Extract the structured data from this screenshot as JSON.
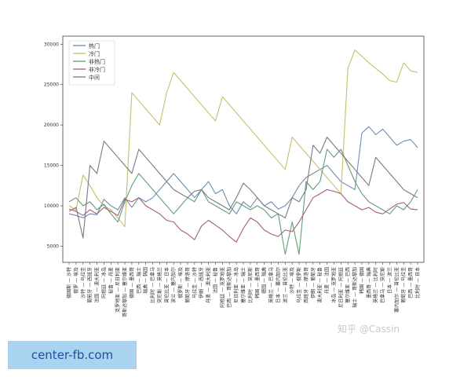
{
  "chart_data": {
    "type": "line",
    "title": "",
    "xlabel": "",
    "ylabel": "",
    "ylim": [
      3000,
      31000
    ],
    "yticks": [
      5000,
      10000,
      15000,
      20000,
      25000,
      30000
    ],
    "legend": "top-left",
    "grid": false,
    "categories": [
      "德国斯 — 沙特",
      "俄罗 — 埃及",
      "沙特 — 乌拉圭",
      "葡萄牙 — 西班牙",
      "法国 — 澳大利亚",
      "阿根廷 — 冰岛",
      "秘鲁 — 丹麦",
      "克罗地亚 — 尼日利亚",
      "哥斯达黎加 — 塞尔维亚",
      "德国 — 墨西哥",
      "巴西 — 瑞士",
      "瑞典 — 韩国",
      "比利时 — 巴拿马",
      "突尼斯 — 英格兰",
      "哥伦比亚 — 日本",
      "波兰 — 塞内加尔",
      "俄罗斯 — 埃及",
      "葡萄牙 — 摩洛哥",
      "乌拉圭 — 沙特",
      "伊朗 — 西班牙",
      "丹麦 — 澳大利亚",
      "法国 — 秘鲁",
      "阿根廷 — 克罗地亚",
      "巴西 — 哥斯达黎加",
      "尼日利亚 — 冰岛",
      "塞尔维亚 — 瑞士",
      "比利时 — 突尼斯",
      "韩国 — 墨西哥",
      "德国 — 瑞典",
      "英格兰 — 巴拿马",
      "日本 — 塞内加尔",
      "波兰 — 哥伦比亚",
      "沙特 — 埃及",
      "乌拉圭 — 俄罗斯",
      "西班牙 — 摩洛哥",
      "伊朗 — 葡萄牙",
      "澳大利亚 — 秘鲁",
      "丹麦 — 法国",
      "冰岛 — 克罗地亚",
      "尼日利亚 — 阿根廷",
      "塞尔维亚 — 巴西",
      "瑞士 — 哥斯达黎加",
      "韩国 — 德国",
      "墨西哥 — 瑞典",
      "英格兰 — 比利时",
      "巴拿马 — 突尼斯",
      "日本 — 波兰",
      "塞内加尔 — 哥伦比亚",
      "葡萄牙 — 乌拉圭",
      "巴西 — 墨西哥",
      "比利时 — 日本"
    ],
    "series": [
      {
        "name": "热门",
        "color": "#6b8db5",
        "values": [
          9000,
          8800,
          8500,
          9000,
          8900,
          10800,
          10000,
          9500,
          11000,
          9800,
          11000,
          10500,
          11000,
          12000,
          13000,
          14000,
          13000,
          12000,
          11000,
          12000,
          13000,
          11500,
          12000,
          10000,
          9000,
          10500,
          9800,
          11000,
          10000,
          10500,
          9600,
          10000,
          11000,
          12500,
          13500,
          14000,
          14500,
          15000,
          14000,
          13000,
          12500,
          12000,
          19000,
          19800,
          18800,
          19500,
          18500,
          17500,
          18000,
          18200,
          17200
        ]
      },
      {
        "name": "冷门",
        "color": "#c5c06c",
        "values": [
          10000,
          9500,
          13800,
          12500,
          11000,
          10000,
          9500,
          8500,
          7400,
          24000,
          23000,
          22000,
          21000,
          20000,
          24000,
          26500,
          25500,
          24500,
          23500,
          22500,
          21500,
          20500,
          23500,
          22500,
          21500,
          20500,
          19500,
          18500,
          17500,
          16500,
          15500,
          14500,
          18500,
          17500,
          16500,
          15500,
          14500,
          13500,
          12500,
          11500,
          27000,
          29300,
          28500,
          27700,
          27000,
          26300,
          25500,
          25300,
          27700,
          26700,
          26500
        ]
      },
      {
        "name": "非热门",
        "color": "#5f9e77",
        "values": [
          10500,
          11000,
          10000,
          10500,
          9500,
          10200,
          9000,
          8000,
          10500,
          12500,
          14000,
          13000,
          12000,
          11000,
          10000,
          9000,
          10000,
          11000,
          10500,
          12000,
          10500,
          10000,
          9500,
          9000,
          10500,
          10000,
          9500,
          10000,
          9500,
          8500,
          9000,
          4000,
          8000,
          4000,
          13000,
          12000,
          13000,
          17000,
          16000,
          17000,
          15000,
          13000,
          11500,
          10500,
          10000,
          9500,
          9000,
          10000,
          9500,
          10500,
          12000
        ]
      },
      {
        "name": "非冷门",
        "color": "#a55d7a",
        "values": [
          9600,
          9300,
          8800,
          9500,
          9000,
          9800,
          9300,
          8800,
          10800,
          10500,
          11000,
          10000,
          9500,
          9000,
          8200,
          8000,
          7000,
          6500,
          5800,
          7500,
          8200,
          7600,
          7000,
          6200,
          5500,
          7200,
          8500,
          8000,
          7000,
          6500,
          6200,
          7000,
          6800,
          8000,
          9500,
          11000,
          11500,
          12000,
          11800,
          11500,
          10500,
          10000,
          9500,
          9800,
          9200,
          9000,
          9600,
          10200,
          10400,
          9600,
          9500
        ]
      },
      {
        "name": "中间",
        "color": "#7a7a7a",
        "values": [
          9300,
          9800,
          6000,
          15000,
          14000,
          18000,
          17000,
          16000,
          15000,
          14000,
          17000,
          16000,
          15000,
          14000,
          13000,
          12000,
          11500,
          11000,
          11800,
          12000,
          11000,
          10500,
          10000,
          9500,
          11000,
          12800,
          12000,
          11000,
          10000,
          9500,
          9000,
          8500,
          11000,
          10500,
          12000,
          17500,
          16500,
          18500,
          17500,
          16500,
          15500,
          14500,
          13500,
          12500,
          16000,
          15000,
          14000,
          13000,
          12000,
          11500,
          11000
        ]
      }
    ]
  },
  "watermark": "知乎 @Cassin",
  "badge": "center-fb.com"
}
